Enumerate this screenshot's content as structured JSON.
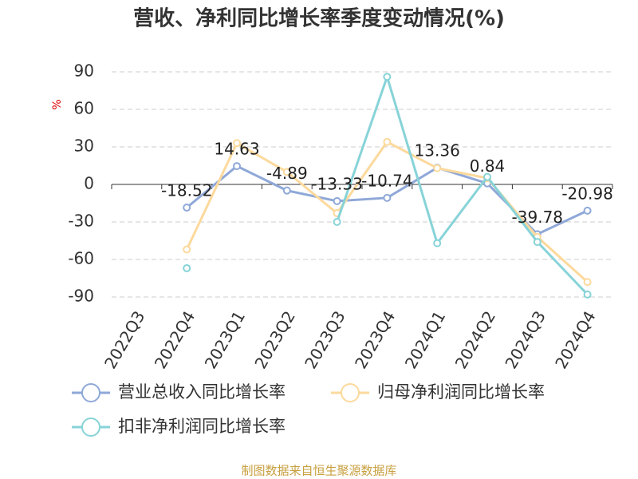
{
  "chart_data": {
    "type": "line",
    "title": "营收、净利同比增长率季度变动情况(%)",
    "y_label": "%",
    "categories": [
      "2022Q3",
      "2022Q4",
      "2023Q1",
      "2023Q2",
      "2023Q3",
      "2023Q4",
      "2024Q1",
      "2024Q2",
      "2024Q3",
      "2024Q4"
    ],
    "series": [
      {
        "name": "营业总收入同比增长率",
        "color": "#8fa8d8",
        "data_labels": true,
        "values": [
          null,
          -18.52,
          14.63,
          -4.89,
          -13.33,
          -10.74,
          13.36,
          0.84,
          -39.78,
          -20.98
        ]
      },
      {
        "name": "归母净利润同比增长率",
        "color": "#fcd99c",
        "values": [
          null,
          -52,
          33,
          10,
          -23,
          34,
          13,
          5,
          -42,
          -78
        ]
      },
      {
        "name": "扣非净利润同比增长率",
        "color": "#87d3d8",
        "values": [
          null,
          -67,
          null,
          null,
          -30,
          86,
          -47,
          6,
          -46,
          -88
        ]
      }
    ],
    "ylim": [
      -90,
      90
    ],
    "yticks": [
      -90,
      -60,
      -30,
      0,
      30,
      60,
      90
    ],
    "grid": true,
    "source": "制图数据来自恒生聚源数据库"
  }
}
